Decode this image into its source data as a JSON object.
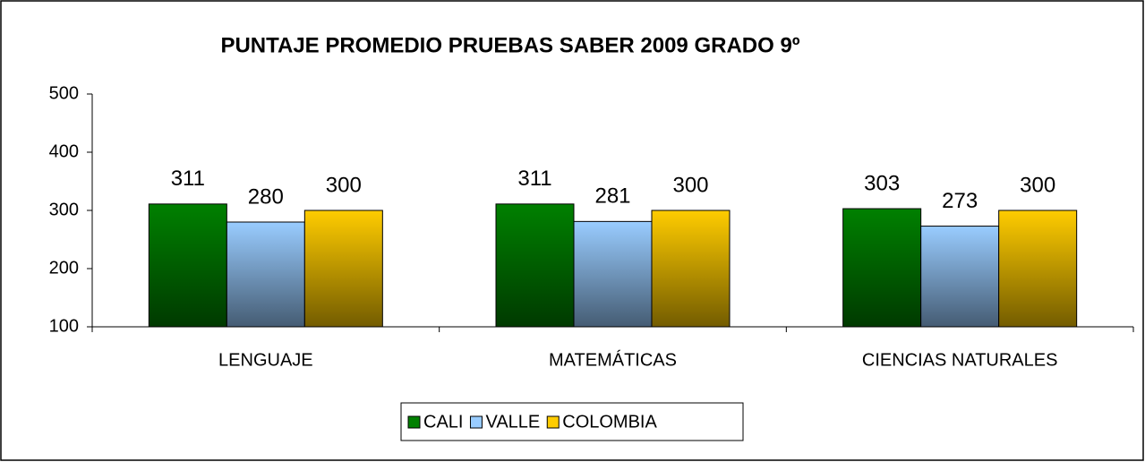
{
  "chart_data": {
    "type": "bar",
    "title": "PUNTAJE PROMEDIO PRUEBAS SABER 2009 GRADO 9º",
    "categories": [
      "LENGUAJE",
      "MATEMÁTICAS",
      "CIENCIAS NATURALES"
    ],
    "series": [
      {
        "name": "CALI",
        "color": "#008000",
        "values": [
          311,
          311,
          303
        ]
      },
      {
        "name": "VALLE",
        "color": "#99ccff",
        "values": [
          280,
          281,
          273
        ]
      },
      {
        "name": "COLOMBIA",
        "color": "#ffcc00",
        "values": [
          300,
          300,
          300
        ]
      }
    ],
    "ylim": [
      100,
      500
    ],
    "yticks": [
      100,
      200,
      300,
      400,
      500
    ],
    "grid": false,
    "legend": "bottom"
  }
}
